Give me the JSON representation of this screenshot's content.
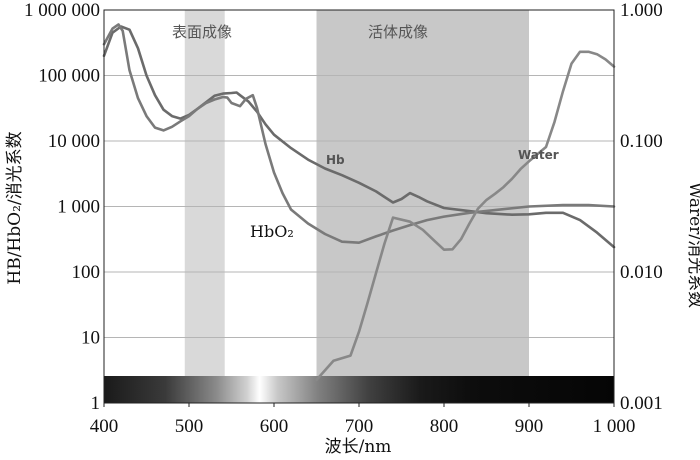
{
  "chart_data": {
    "type": "line",
    "xlabel": "波长/nm",
    "ylabel_left": "HB/HbO₂/消光系数",
    "ylabel_right": "Warer/消光系数",
    "x_ticks": [
      "400",
      "500",
      "600",
      "700",
      "800",
      "900",
      "1 000"
    ],
    "y_left_ticks": [
      "1",
      "10",
      "100",
      "1 000",
      "10 000",
      "100 000",
      "1 000 000"
    ],
    "y_right_ticks": [
      "0.001",
      "0.010",
      "0.100",
      "1.000"
    ],
    "x_range": [
      400,
      1000
    ],
    "y_left_range": [
      1,
      1000000
    ],
    "y_left_scale": "log",
    "y_right_range": [
      0.001,
      1
    ],
    "y_right_scale": "log",
    "grid": true,
    "bands": [
      {
        "label": "表面成像",
        "x_range": [
          495,
          542
        ],
        "color": "#d9d9d9"
      },
      {
        "label": "活体成像",
        "x_range": [
          650,
          900
        ],
        "color": "#c8c8c8"
      }
    ],
    "spectrum_bar": {
      "from": 400,
      "to": 1000
    },
    "series": [
      {
        "name": "Hb",
        "axis": "left",
        "color": "#6b6b6b",
        "points": [
          [
            400,
            200000
          ],
          [
            410,
            450000
          ],
          [
            420,
            560000
          ],
          [
            430,
            500000
          ],
          [
            440,
            260000
          ],
          [
            450,
            100000
          ],
          [
            460,
            50000
          ],
          [
            470,
            30000
          ],
          [
            480,
            24000
          ],
          [
            490,
            22000
          ],
          [
            500,
            25000
          ],
          [
            510,
            31000
          ],
          [
            520,
            39000
          ],
          [
            530,
            49000
          ],
          [
            540,
            53000
          ],
          [
            550,
            54000
          ],
          [
            556,
            55000
          ],
          [
            560,
            50000
          ],
          [
            570,
            40000
          ],
          [
            580,
            28000
          ],
          [
            590,
            18000
          ],
          [
            600,
            12500
          ],
          [
            620,
            7800
          ],
          [
            640,
            5200
          ],
          [
            660,
            3800
          ],
          [
            680,
            3000
          ],
          [
            700,
            2300
          ],
          [
            720,
            1700
          ],
          [
            740,
            1150
          ],
          [
            750,
            1300
          ],
          [
            760,
            1600
          ],
          [
            770,
            1400
          ],
          [
            780,
            1200
          ],
          [
            800,
            950
          ],
          [
            820,
            880
          ],
          [
            850,
            790
          ],
          [
            880,
            750
          ],
          [
            900,
            760
          ],
          [
            920,
            800
          ],
          [
            940,
            800
          ],
          [
            960,
            620
          ],
          [
            980,
            400
          ],
          [
            1000,
            240
          ]
        ]
      },
      {
        "name": "HbO₂",
        "axis": "left",
        "color": "#7a7a7a",
        "points": [
          [
            400,
            300000
          ],
          [
            410,
            520000
          ],
          [
            417,
            600000
          ],
          [
            422,
            480000
          ],
          [
            430,
            120000
          ],
          [
            440,
            45000
          ],
          [
            450,
            24000
          ],
          [
            460,
            16000
          ],
          [
            470,
            14500
          ],
          [
            480,
            16500
          ],
          [
            490,
            20000
          ],
          [
            500,
            24000
          ],
          [
            510,
            31000
          ],
          [
            520,
            38000
          ],
          [
            530,
            43000
          ],
          [
            540,
            47000
          ],
          [
            545,
            46000
          ],
          [
            550,
            38000
          ],
          [
            560,
            34000
          ],
          [
            567,
            44000
          ],
          [
            575,
            50000
          ],
          [
            580,
            32000
          ],
          [
            590,
            9000
          ],
          [
            600,
            3300
          ],
          [
            610,
            1600
          ],
          [
            620,
            900
          ],
          [
            640,
            550
          ],
          [
            660,
            380
          ],
          [
            680,
            290
          ],
          [
            700,
            280
          ],
          [
            720,
            350
          ],
          [
            740,
            430
          ],
          [
            760,
            520
          ],
          [
            780,
            620
          ],
          [
            800,
            700
          ],
          [
            830,
            800
          ],
          [
            860,
            880
          ],
          [
            900,
            1000
          ],
          [
            940,
            1050
          ],
          [
            970,
            1050
          ],
          [
            1000,
            1000
          ]
        ]
      },
      {
        "name": "Water",
        "axis": "right",
        "color": "#888888",
        "points": [
          [
            650,
            0.0015
          ],
          [
            670,
            0.0021
          ],
          [
            690,
            0.0023
          ],
          [
            700,
            0.0035
          ],
          [
            710,
            0.0058
          ],
          [
            720,
            0.0098
          ],
          [
            730,
            0.0165
          ],
          [
            740,
            0.026
          ],
          [
            760,
            0.0242
          ],
          [
            775,
            0.021
          ],
          [
            790,
            0.017
          ],
          [
            800,
            0.0148
          ],
          [
            810,
            0.0149
          ],
          [
            820,
            0.0178
          ],
          [
            830,
            0.0235
          ],
          [
            840,
            0.0305
          ],
          [
            850,
            0.0355
          ],
          [
            860,
            0.0395
          ],
          [
            870,
            0.0445
          ],
          [
            880,
            0.0515
          ],
          [
            890,
            0.061
          ],
          [
            900,
            0.07
          ],
          [
            920,
            0.09
          ],
          [
            930,
            0.14
          ],
          [
            940,
            0.24
          ],
          [
            950,
            0.39
          ],
          [
            960,
            0.48
          ],
          [
            970,
            0.48
          ],
          [
            980,
            0.46
          ],
          [
            990,
            0.42
          ],
          [
            1000,
            0.37
          ]
        ]
      }
    ]
  }
}
